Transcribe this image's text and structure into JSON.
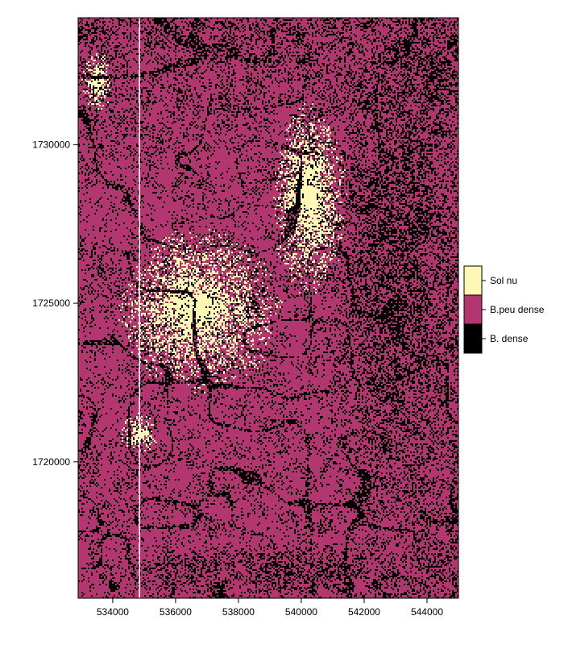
{
  "chart_data": {
    "type": "heatmap",
    "title": "",
    "xlabel": "",
    "ylabel": "",
    "xlim": [
      532900,
      545000
    ],
    "ylim": [
      1715700,
      1734000
    ],
    "x_ticks": [
      "534000",
      "536000",
      "538000",
      "540000",
      "542000",
      "544000"
    ],
    "x_tick_values": [
      534000,
      536000,
      538000,
      540000,
      542000,
      544000
    ],
    "y_ticks": [
      "1720000",
      "1725000",
      "1730000"
    ],
    "y_tick_values": [
      1720000,
      1725000,
      1730000
    ],
    "legend": {
      "position": "right",
      "classes": [
        {
          "label": "Sol nu",
          "color": "#FFF8B4"
        },
        {
          "label": "B.peu dense",
          "color": "#B2366F"
        },
        {
          "label": "B. dense",
          "color": "#000000"
        }
      ]
    },
    "vertical_line_x": 534850,
    "vertical_line_color": "#FFFFFF",
    "raster_description_zones": [
      {
        "class": "Sol nu",
        "x": [
          533000,
          534000
        ],
        "y": [
          1731000,
          1733000
        ]
      },
      {
        "class": "Sol nu",
        "x": [
          534000,
          539500
        ],
        "y": [
          1722000,
          1727500
        ]
      },
      {
        "class": "Sol nu",
        "x": [
          534200,
          535500
        ],
        "y": [
          1720200,
          1721600
        ]
      },
      {
        "class": "Sol nu",
        "x": [
          539000,
          541500
        ],
        "y": [
          1725000,
          1731500
        ]
      },
      {
        "class": "B. dense",
        "x": [
          540500,
          545000
        ],
        "y": [
          1717000,
          1734000
        ]
      },
      {
        "class": "B. dense",
        "x": [
          532900,
          545000
        ],
        "y": [
          1715700,
          1717500
        ]
      }
    ]
  }
}
